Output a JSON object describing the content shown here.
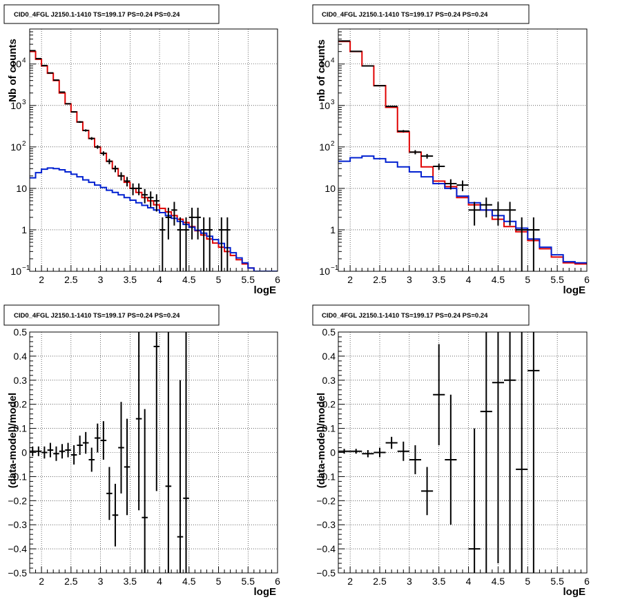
{
  "colors": {
    "data": "#000000",
    "total_model": "#e00000",
    "source_model": "#0020d0",
    "grid": "#000000"
  },
  "chart_data": [
    {
      "type": "line",
      "title": "CID0_4FGL J2150.1-1410 TS=199.17 PS=0.24 PS=0.24",
      "xlabel": "logE",
      "ylabel": "Nb of counts",
      "xlim": [
        1.8,
        6.0
      ],
      "ylim": [
        0.1,
        70000
      ],
      "yscale": "log",
      "grid": true,
      "xticks": [
        "2",
        "2.5",
        "3",
        "3.5",
        "4",
        "4.5",
        "5",
        "5.5",
        "6"
      ],
      "yticks": [
        {
          "value": 0.1,
          "mantissa": "10",
          "exp": "−1"
        },
        {
          "value": 1,
          "mantissa": "1",
          "exp": ""
        },
        {
          "value": 10,
          "mantissa": "10",
          "exp": ""
        },
        {
          "value": 100,
          "mantissa": "10",
          "exp": "2"
        },
        {
          "value": 1000,
          "mantissa": "10",
          "exp": "3"
        },
        {
          "value": 10000,
          "mantissa": "10",
          "exp": "4"
        }
      ],
      "bin_edges": [
        1.8,
        1.9,
        2.0,
        2.1,
        2.2,
        2.3,
        2.4,
        2.5,
        2.6,
        2.7,
        2.8,
        2.9,
        3.0,
        3.1,
        3.2,
        3.3,
        3.4,
        3.5,
        3.6,
        3.7,
        3.8,
        3.9,
        4.0,
        4.1,
        4.2,
        4.3,
        4.4,
        4.5,
        4.6,
        4.7,
        4.8,
        4.9,
        5.0,
        5.1,
        5.2,
        5.3,
        5.4,
        5.5,
        5.6,
        5.7,
        5.8,
        5.9,
        6.0
      ],
      "series": [
        {
          "role": "total_model",
          "values": [
            20000,
            13000,
            9000,
            6000,
            4000,
            2000,
            1100,
            700,
            400,
            250,
            160,
            100,
            70,
            45,
            30,
            20,
            14,
            10,
            8,
            6,
            5,
            4,
            3.3,
            2.7,
            2.2,
            1.8,
            1.5,
            1.2,
            0.95,
            0.75,
            0.6,
            0.48,
            0.38,
            0.3,
            0.24,
            0.19,
            0.15,
            0.12,
            0.1,
            0.1,
            0.1,
            0.1
          ]
        },
        {
          "role": "source_model",
          "values": [
            18,
            24,
            29,
            31,
            30,
            28,
            25,
            22,
            19,
            16,
            14,
            12,
            10.5,
            9,
            8,
            7,
            6,
            5.2,
            4.5,
            3.9,
            3.4,
            3.0,
            2.6,
            2.2,
            1.9,
            1.6,
            1.35,
            1.15,
            0.98,
            0.83,
            0.7,
            0.58,
            0.47,
            0.37,
            0.28,
            0.21,
            0.16,
            0.12,
            0.1,
            0.1,
            0.1,
            0.1
          ]
        },
        {
          "role": "data",
          "x": [
            1.85,
            1.95,
            2.05,
            2.15,
            2.25,
            2.35,
            2.45,
            2.55,
            2.65,
            2.75,
            2.85,
            2.95,
            3.05,
            3.15,
            3.25,
            3.35,
            3.45,
            3.55,
            3.65,
            3.75,
            3.85,
            3.95,
            4.05,
            4.15,
            4.25,
            4.35,
            4.45,
            4.55,
            4.65,
            4.75,
            4.85,
            5.05,
            5.15
          ],
          "y": [
            21000,
            13500,
            9200,
            6100,
            4100,
            2100,
            1100,
            700,
            400,
            250,
            160,
            100,
            70,
            45,
            30,
            20,
            15,
            10,
            10,
            7,
            6,
            5,
            1,
            2,
            3,
            1,
            1,
            2,
            2,
            1,
            1,
            1,
            1
          ],
          "xerr": 0.05
        }
      ]
    },
    {
      "type": "line",
      "title": "CID0_4FGL J2150.1-1410 TS=199.17 PS=0.24 PS=0.24",
      "xlabel": "logE",
      "ylabel": "nb of counts",
      "xlim": [
        1.8,
        6.0
      ],
      "ylim": [
        0.1,
        70000
      ],
      "yscale": "log",
      "grid": true,
      "xticks": [
        "2",
        "2.5",
        "3",
        "3.5",
        "4",
        "4.5",
        "5",
        "5.5",
        "6"
      ],
      "yticks": [
        {
          "value": 0.1,
          "mantissa": "10",
          "exp": "−1"
        },
        {
          "value": 1,
          "mantissa": "1",
          "exp": ""
        },
        {
          "value": 10,
          "mantissa": "10",
          "exp": ""
        },
        {
          "value": 100,
          "mantissa": "10",
          "exp": "2"
        },
        {
          "value": 1000,
          "mantissa": "10",
          "exp": "3"
        },
        {
          "value": 10000,
          "mantissa": "10",
          "exp": "4"
        }
      ],
      "bin_edges": [
        1.8,
        2.0,
        2.2,
        2.4,
        2.6,
        2.8,
        3.0,
        3.2,
        3.4,
        3.6,
        3.8,
        4.0,
        4.2,
        4.4,
        4.6,
        4.8,
        5.0,
        5.2,
        5.4,
        5.6,
        5.8,
        6.0
      ],
      "series": [
        {
          "role": "total_model",
          "values": [
            35000,
            20000,
            9000,
            3000,
            900,
            230,
            75,
            33,
            15,
            11,
            6,
            4,
            3,
            1.8,
            1.2,
            0.9,
            0.55,
            0.35,
            0.22,
            0.16,
            0.15
          ]
        },
        {
          "role": "source_model",
          "values": [
            45,
            55,
            60,
            52,
            43,
            33,
            25,
            19,
            13,
            10,
            6.5,
            4.5,
            3,
            2.2,
            1.6,
            1.1,
            0.6,
            0.38,
            0.25,
            0.17,
            0.16
          ]
        },
        {
          "role": "data",
          "x": [
            1.9,
            2.1,
            2.3,
            2.5,
            2.7,
            2.9,
            3.1,
            3.3,
            3.5,
            3.7,
            3.9,
            4.1,
            4.3,
            4.5,
            4.7,
            4.9,
            5.1
          ],
          "y": [
            36000,
            20200,
            9000,
            3000,
            950,
            240,
            75,
            60,
            34,
            13,
            12,
            3,
            4,
            3,
            3,
            1,
            1
          ],
          "xerr": 0.1
        }
      ]
    },
    {
      "type": "scatter",
      "title": "CID0_4FGL J2150.1-1410 TS=199.17 PS=0.24 PS=0.24",
      "xlabel": "logE",
      "ylabel": "(data-model)/model",
      "xlim": [
        1.8,
        6.0
      ],
      "ylim": [
        -0.5,
        0.5
      ],
      "yscale": "linear",
      "grid": true,
      "xticks": [
        "2",
        "2.5",
        "3",
        "3.5",
        "4",
        "4.5",
        "5",
        "5.5",
        "6"
      ],
      "yticks": [
        {
          "value": -0.5,
          "label": "−0.5"
        },
        {
          "value": -0.4,
          "label": "−0.4"
        },
        {
          "value": -0.3,
          "label": "−0.3"
        },
        {
          "value": -0.2,
          "label": "−0.2"
        },
        {
          "value": -0.1,
          "label": "−0.1"
        },
        {
          "value": 0,
          "label": "0"
        },
        {
          "value": 0.1,
          "label": "0.1"
        },
        {
          "value": 0.2,
          "label": "0.2"
        },
        {
          "value": 0.3,
          "label": "0.3"
        },
        {
          "value": 0.4,
          "label": "0.4"
        },
        {
          "value": 0.5,
          "label": "0.5"
        }
      ],
      "series": [
        {
          "role": "data",
          "xerr": 0.05,
          "x": [
            1.85,
            1.95,
            2.05,
            2.15,
            2.25,
            2.35,
            2.45,
            2.55,
            2.65,
            2.75,
            2.85,
            2.95,
            3.05,
            3.15,
            3.25,
            3.35,
            3.45,
            3.65,
            3.75,
            3.95,
            4.15,
            4.35,
            4.45
          ],
          "y": [
            0.005,
            0.005,
            0.0,
            0.01,
            -0.005,
            0.005,
            0.01,
            -0.01,
            0.03,
            0.04,
            -0.03,
            0.06,
            0.05,
            -0.17,
            -0.26,
            0.02,
            -0.06,
            0.14,
            -0.27,
            0.44,
            -0.14,
            -0.35,
            -0.19
          ],
          "yerr": [
            0.02,
            0.02,
            0.025,
            0.03,
            0.03,
            0.03,
            0.03,
            0.04,
            0.04,
            0.045,
            0.05,
            0.06,
            0.08,
            0.11,
            0.13,
            0.19,
            0.2,
            0.38,
            0.45,
            0.6,
            0.65,
            0.65,
            0.7
          ]
        }
      ]
    },
    {
      "type": "scatter",
      "title": "CID0_4FGL J2150.1-1410 TS=199.17 PS=0.24 PS=0.24",
      "xlabel": "logE",
      "ylabel": "(data-model)/model",
      "xlim": [
        1.8,
        6.0
      ],
      "ylim": [
        -0.5,
        0.5
      ],
      "yscale": "linear",
      "grid": true,
      "xticks": [
        "2",
        "2.5",
        "3",
        "3.5",
        "4",
        "4.5",
        "5",
        "5.5",
        "6"
      ],
      "yticks": [
        {
          "value": -0.5,
          "label": "−0.5"
        },
        {
          "value": -0.4,
          "label": "−0.4"
        },
        {
          "value": -0.3,
          "label": "−0.3"
        },
        {
          "value": -0.2,
          "label": "−0.2"
        },
        {
          "value": -0.1,
          "label": "−0.1"
        },
        {
          "value": 0,
          "label": "0"
        },
        {
          "value": 0.1,
          "label": "0.1"
        },
        {
          "value": 0.2,
          "label": "0.2"
        },
        {
          "value": 0.3,
          "label": "0.3"
        },
        {
          "value": 0.4,
          "label": "0.4"
        },
        {
          "value": 0.5,
          "label": "0.5"
        }
      ],
      "series": [
        {
          "role": "data",
          "xerr": 0.1,
          "x": [
            1.9,
            2.1,
            2.3,
            2.5,
            2.7,
            2.9,
            3.1,
            3.3,
            3.5,
            3.7,
            4.1,
            4.3,
            4.5,
            4.7,
            4.9,
            5.1
          ],
          "y": [
            0.005,
            0.005,
            -0.005,
            0.0,
            0.04,
            0.005,
            -0.03,
            -0.16,
            0.24,
            -0.03,
            -0.4,
            0.17,
            0.29,
            0.3,
            -0.07,
            0.34
          ],
          "yerr": [
            0.01,
            0.01,
            0.015,
            0.02,
            0.025,
            0.04,
            0.06,
            0.1,
            0.21,
            0.27,
            0.5,
            0.7,
            0.75,
            0.8,
            0.9,
            1.0
          ]
        }
      ]
    }
  ]
}
